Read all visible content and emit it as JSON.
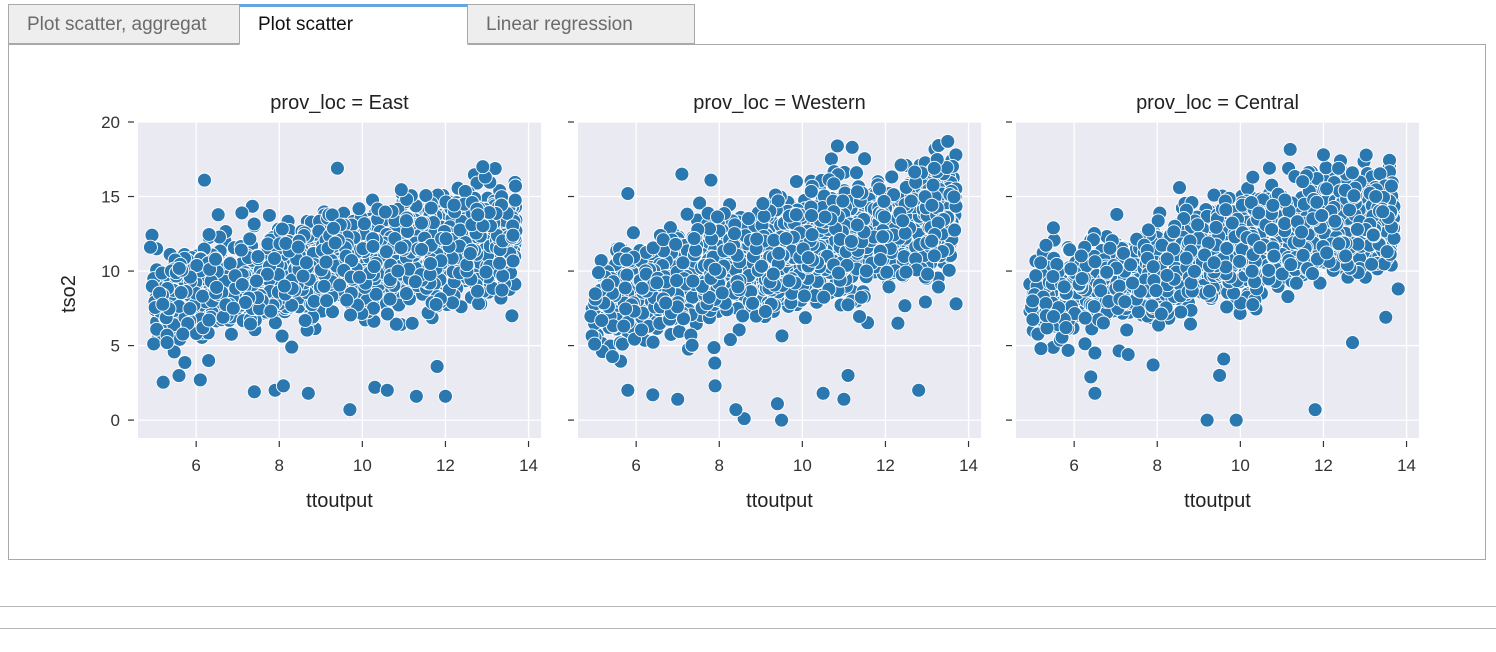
{
  "tabs": [
    {
      "label": "Plot scatter, aggregat",
      "active": false
    },
    {
      "label": "Plot scatter",
      "active": true
    },
    {
      "label": "Linear regression",
      "active": false
    }
  ],
  "colors": {
    "marker": "#2b78b1",
    "marker_edge": "#ffffff",
    "plot_bg": "#eaeaf2",
    "grid": "#ffffff",
    "tab_accent": "#64a6e3"
  },
  "chart_data": [
    {
      "type": "scatter",
      "title": "prov_loc = East",
      "xlabel": "ttoutput",
      "ylabel": "tso2",
      "xlim": [
        4.6,
        14.3
      ],
      "ylim": [
        -1.2,
        20.0
      ],
      "xticks": [
        6,
        8,
        10,
        12,
        14
      ],
      "yticks": [
        0,
        5,
        10,
        15,
        20
      ],
      "grid": true,
      "trend": {
        "x0": 4.9,
        "y0": 8.0,
        "x1": 13.7,
        "y1": 12.5,
        "spread": 2.6
      },
      "points": [
        [
          6.2,
          16.1
        ],
        [
          9.4,
          16.9
        ],
        [
          4.9,
          11.6
        ],
        [
          9.7,
          0.7
        ],
        [
          12.0,
          1.6
        ],
        [
          11.3,
          1.6
        ],
        [
          10.3,
          2.2
        ],
        [
          7.4,
          1.9
        ],
        [
          7.9,
          2.0
        ],
        [
          8.7,
          1.8
        ],
        [
          6.1,
          2.7
        ],
        [
          8.1,
          2.3
        ],
        [
          5.3,
          5.2
        ],
        [
          13.6,
          7.0
        ],
        [
          7.1,
          13.9
        ],
        [
          12.9,
          17.0
        ],
        [
          6.3,
          4.0
        ],
        [
          8.3,
          4.9
        ],
        [
          10.6,
          2.0
        ],
        [
          11.8,
          3.6
        ]
      ]
    },
    {
      "type": "scatter",
      "title": "prov_loc = Western",
      "xlabel": "ttoutput",
      "ylabel": "",
      "xlim": [
        4.6,
        14.3
      ],
      "ylim": [
        -1.2,
        20.0
      ],
      "xticks": [
        6,
        8,
        10,
        12,
        14
      ],
      "yticks": [
        0,
        5,
        10,
        15,
        20
      ],
      "grid": true,
      "trend": {
        "x0": 4.9,
        "y0": 7.8,
        "x1": 13.7,
        "y1": 14.0,
        "spread": 2.9
      },
      "points": [
        [
          5.8,
          15.2
        ],
        [
          7.1,
          16.5
        ],
        [
          7.8,
          16.1
        ],
        [
          11.2,
          18.3
        ],
        [
          13.5,
          18.7
        ],
        [
          8.6,
          0.1
        ],
        [
          9.5,
          0.0
        ],
        [
          8.4,
          0.7
        ],
        [
          9.4,
          1.1
        ],
        [
          11.0,
          1.4
        ],
        [
          12.8,
          2.0
        ],
        [
          5.8,
          2.0
        ],
        [
          6.4,
          1.7
        ],
        [
          7.0,
          1.4
        ],
        [
          7.9,
          2.3
        ],
        [
          10.5,
          1.8
        ],
        [
          11.1,
          3.0
        ],
        [
          13.7,
          7.8
        ],
        [
          12.3,
          6.5
        ],
        [
          5.0,
          5.1
        ]
      ]
    },
    {
      "type": "scatter",
      "title": "prov_loc = Central",
      "xlabel": "ttoutput",
      "ylabel": "",
      "xlim": [
        4.6,
        14.3
      ],
      "ylim": [
        -1.2,
        20.0
      ],
      "xticks": [
        6,
        8,
        10,
        12,
        14
      ],
      "yticks": [
        0,
        5,
        10,
        15,
        20
      ],
      "grid": true,
      "trend": {
        "x0": 4.9,
        "y0": 8.0,
        "x1": 13.7,
        "y1": 14.0,
        "spread": 2.5
      },
      "points": [
        [
          9.2,
          0.0
        ],
        [
          9.9,
          0.0
        ],
        [
          11.8,
          0.7
        ],
        [
          6.5,
          1.8
        ],
        [
          6.4,
          2.9
        ],
        [
          9.5,
          3.0
        ],
        [
          9.6,
          4.1
        ],
        [
          7.9,
          3.7
        ],
        [
          12.7,
          5.2
        ],
        [
          13.5,
          6.9
        ],
        [
          12.0,
          17.8
        ],
        [
          5.0,
          8.0
        ],
        [
          5.2,
          4.8
        ],
        [
          5.5,
          12.9
        ],
        [
          11.5,
          16.0
        ],
        [
          10.3,
          16.3
        ],
        [
          13.8,
          8.8
        ],
        [
          6.5,
          4.5
        ],
        [
          7.3,
          4.4
        ],
        [
          10.7,
          16.9
        ]
      ]
    }
  ]
}
